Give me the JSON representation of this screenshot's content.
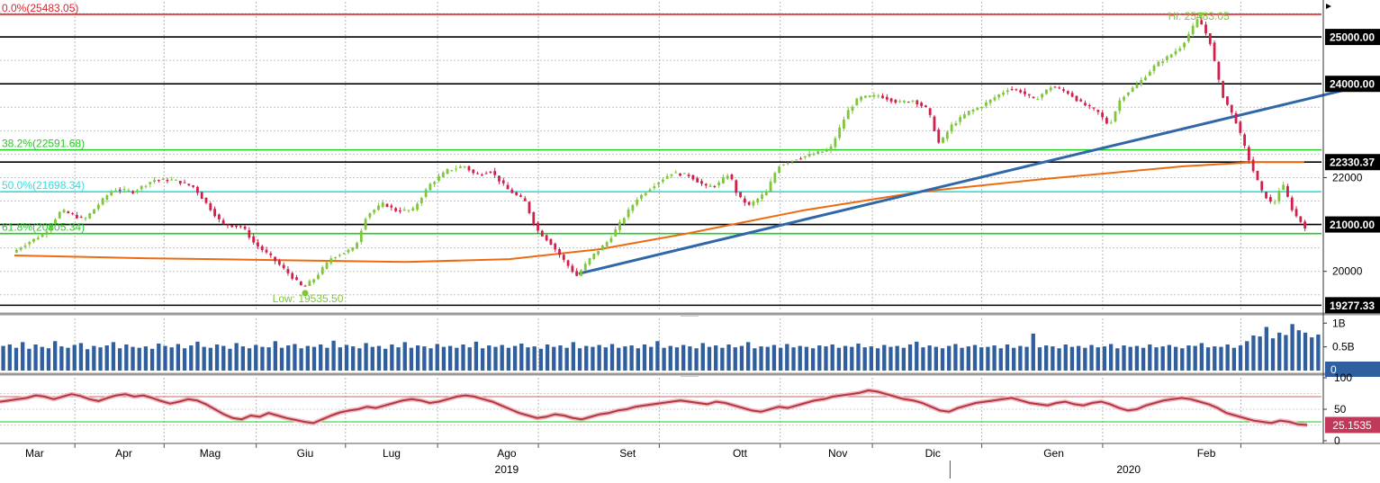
{
  "chart_data": {
    "type": "candlestick",
    "colors": {
      "up_candle": "#7ec63a",
      "down_candle": "#d21f4a",
      "fib_0": "#e8202a",
      "fib_382": "#22cc22",
      "fib_500": "#33dddd",
      "fib_618": "#22cc22",
      "level_line": "#000000",
      "trendline": "#2f67a8",
      "moving_average": "#ee6a10",
      "volume_bar": "#2f5f9f",
      "rsi_line": "#b03a3a",
      "rsi_upper": "#c86a6a",
      "rsi_lower": "#22cc22"
    },
    "price_panel": {
      "ylim": [
        19150,
        25750
      ],
      "ticks": [
        "20000",
        "22000"
      ],
      "fibonacci": [
        {
          "label": "0.0%(25483.05)",
          "value": 25483.05,
          "color_key": "fib_0"
        },
        {
          "label": "38.2%(22591.68)",
          "value": 22591.68,
          "color_key": "fib_382"
        },
        {
          "label": "50.0%(21698.34)",
          "value": 21698.34,
          "color_key": "fib_500"
        },
        {
          "label": "61.8%(20805.34)",
          "value": 20805.34,
          "color_key": "fib_618"
        }
      ],
      "levels": [
        {
          "label": "25000.00",
          "value": 25000
        },
        {
          "label": "24000.00",
          "value": 24000
        },
        {
          "label": "22330.37",
          "value": 22330.37
        },
        {
          "label": "21000.00",
          "value": 21000
        },
        {
          "label": "19277.33",
          "value": 19277.33
        }
      ],
      "hi_label": "Hi: 25483.05",
      "low_label": "Low: 19535.50",
      "price_path": [
        [
          "2019-03-01",
          20400
        ],
        [
          "2019-03-06",
          20600
        ],
        [
          "2019-03-12",
          20800
        ],
        [
          "2019-03-18",
          21300
        ],
        [
          "2019-03-26",
          21100
        ],
        [
          "2019-04-01",
          21500
        ],
        [
          "2019-04-05",
          21750
        ],
        [
          "2019-04-12",
          21700
        ],
        [
          "2019-04-19",
          21950
        ],
        [
          "2019-04-26",
          21950
        ],
        [
          "2019-05-03",
          21800
        ],
        [
          "2019-05-08",
          21400
        ],
        [
          "2019-05-13",
          21000
        ],
        [
          "2019-05-20",
          20950
        ],
        [
          "2019-05-24",
          20600
        ],
        [
          "2019-05-30",
          20300
        ],
        [
          "2019-06-05",
          19950
        ],
        [
          "2019-06-10",
          19650
        ],
        [
          "2019-06-14",
          19850
        ],
        [
          "2019-06-20",
          20300
        ],
        [
          "2019-06-28",
          20500
        ],
        [
          "2019-07-02",
          21200
        ],
        [
          "2019-07-08",
          21450
        ],
        [
          "2019-07-12",
          21300
        ],
        [
          "2019-07-18",
          21300
        ],
        [
          "2019-07-24",
          21850
        ],
        [
          "2019-07-30",
          22150
        ],
        [
          "2019-08-05",
          22250
        ],
        [
          "2019-08-09",
          22050
        ],
        [
          "2019-08-14",
          22150
        ],
        [
          "2019-08-20",
          21750
        ],
        [
          "2019-08-26",
          21500
        ],
        [
          "2019-08-30",
          20900
        ],
        [
          "2019-09-04",
          20600
        ],
        [
          "2019-09-09",
          20200
        ],
        [
          "2019-09-13",
          19900
        ],
        [
          "2019-09-18",
          20300
        ],
        [
          "2019-09-24",
          20650
        ],
        [
          "2019-09-30",
          21200
        ],
        [
          "2019-10-04",
          21550
        ],
        [
          "2019-10-10",
          21850
        ],
        [
          "2019-10-16",
          22100
        ],
        [
          "2019-10-22",
          22050
        ],
        [
          "2019-10-28",
          21800
        ],
        [
          "2019-11-01",
          21850
        ],
        [
          "2019-11-05",
          22100
        ],
        [
          "2019-11-08",
          21600
        ],
        [
          "2019-11-12",
          21400
        ],
        [
          "2019-11-18",
          21700
        ],
        [
          "2019-11-22",
          22250
        ],
        [
          "2019-11-28",
          22400
        ],
        [
          "2019-12-04",
          22500
        ],
        [
          "2019-12-10",
          22600
        ],
        [
          "2019-12-16",
          23400
        ],
        [
          "2019-12-20",
          23700
        ],
        [
          "2019-12-27",
          23750
        ],
        [
          "2020-01-03",
          23600
        ],
        [
          "2020-01-08",
          23650
        ],
        [
          "2020-01-13",
          23450
        ],
        [
          "2020-01-17",
          22700
        ],
        [
          "2020-01-21",
          23100
        ],
        [
          "2020-01-27",
          23400
        ],
        [
          "2020-01-31",
          23500
        ],
        [
          "2020-02-05",
          23700
        ],
        [
          "2020-02-10",
          23900
        ],
        [
          "2020-02-14",
          23850
        ],
        [
          "2020-02-19",
          23650
        ],
        [
          "2020-02-25",
          23950
        ],
        [
          "2020-03-02",
          23800
        ],
        [
          "2020-03-06",
          23600
        ],
        [
          "2020-03-12",
          23400
        ],
        [
          "2020-03-16",
          23100
        ],
        [
          "2020-03-20",
          23700
        ],
        [
          "2020-03-26",
          24000
        ],
        [
          "2020-04-01",
          24400
        ],
        [
          "2020-04-06",
          24600
        ],
        [
          "2020-04-10",
          24800
        ],
        [
          "2020-04-13",
          25100
        ],
        [
          "2020-04-16",
          25400
        ],
        [
          "2020-04-20",
          24900
        ],
        [
          "2020-04-24",
          23800
        ],
        [
          "2020-04-29",
          23200
        ],
        [
          "2020-05-04",
          22300
        ],
        [
          "2020-05-08",
          21700
        ],
        [
          "2020-05-12",
          21400
        ],
        [
          "2020-05-15",
          21900
        ],
        [
          "2020-05-19",
          21250
        ],
        [
          "2020-05-23",
          20950
        ]
      ],
      "trendline": [
        [
          "2019-09-13",
          19950
        ],
        [
          "2020-06-14",
          24000
        ]
      ],
      "moving_average": [
        [
          "2019-03-01",
          20340
        ],
        [
          "2019-04-15",
          20280
        ],
        [
          "2019-06-01",
          20240
        ],
        [
          "2019-07-15",
          20200
        ],
        [
          "2019-08-20",
          20260
        ],
        [
          "2019-09-20",
          20470
        ],
        [
          "2019-10-20",
          20800
        ],
        [
          "2019-11-30",
          21300
        ],
        [
          "2020-01-10",
          21700
        ],
        [
          "2020-02-20",
          21960
        ],
        [
          "2020-04-10",
          22240
        ],
        [
          "2020-05-05",
          22330
        ],
        [
          "2020-05-22",
          22330
        ]
      ]
    },
    "volume_panel": {
      "ylim": [
        0,
        1.1
      ],
      "ticks": [
        "1B",
        "0.5B"
      ],
      "last_label": "0",
      "values": [
        0.52,
        0.55,
        0.48,
        0.6,
        0.46,
        0.55,
        0.5,
        0.47,
        0.62,
        0.51,
        0.48,
        0.54,
        0.58,
        0.45,
        0.52,
        0.49,
        0.53,
        0.6,
        0.47,
        0.55,
        0.5,
        0.48,
        0.51,
        0.46,
        0.57,
        0.52,
        0.49,
        0.56,
        0.47,
        0.53,
        0.61,
        0.5,
        0.48,
        0.55,
        0.52,
        0.46,
        0.58,
        0.51,
        0.47,
        0.54,
        0.5,
        0.49,
        0.62,
        0.48,
        0.53,
        0.56,
        0.47,
        0.52,
        0.5,
        0.55,
        0.48,
        0.63,
        0.49,
        0.54,
        0.51,
        0.47,
        0.58,
        0.5,
        0.52,
        0.46,
        0.55,
        0.49,
        0.6,
        0.48,
        0.53,
        0.51,
        0.47,
        0.56,
        0.5,
        0.52,
        0.48,
        0.55,
        0.49,
        0.61,
        0.47,
        0.53,
        0.5,
        0.54,
        0.48,
        0.52,
        0.57,
        0.49,
        0.51,
        0.46,
        0.55,
        0.5,
        0.53,
        0.48,
        0.6,
        0.47,
        0.52,
        0.5,
        0.54,
        0.49,
        0.56,
        0.48,
        0.51,
        0.53,
        0.47,
        0.55,
        0.5,
        0.62,
        0.48,
        0.52,
        0.49,
        0.54,
        0.51,
        0.47,
        0.58,
        0.5,
        0.53,
        0.48,
        0.55,
        0.49,
        0.52,
        0.6,
        0.47,
        0.51,
        0.5,
        0.54,
        0.48,
        0.56,
        0.49,
        0.52,
        0.5,
        0.47,
        0.53,
        0.51,
        0.55,
        0.48,
        0.52,
        0.5,
        0.57,
        0.49,
        0.51,
        0.47,
        0.54,
        0.5,
        0.52,
        0.48,
        0.55,
        0.61,
        0.49,
        0.53,
        0.5,
        0.47,
        0.52,
        0.56,
        0.48,
        0.51,
        0.54,
        0.49,
        0.5,
        0.53,
        0.47,
        0.55,
        0.48,
        0.52,
        0.5,
        0.78,
        0.49,
        0.53,
        0.51,
        0.47,
        0.55,
        0.5,
        0.52,
        0.48,
        0.54,
        0.49,
        0.51,
        0.56,
        0.47,
        0.53,
        0.5,
        0.52,
        0.48,
        0.55,
        0.49,
        0.51,
        0.54,
        0.5,
        0.47,
        0.53,
        0.52,
        0.58,
        0.49,
        0.51,
        0.5,
        0.55,
        0.48,
        0.53,
        0.62,
        0.74,
        0.72,
        0.92,
        0.68,
        0.8,
        0.75,
        0.98,
        0.85,
        0.8,
        0.7,
        0.76
      ]
    },
    "rsi_panel": {
      "ylim": [
        0,
        100
      ],
      "ticks": [
        "100",
        "50",
        "0"
      ],
      "upper": 70,
      "lower": 30,
      "last_label": "25.1535",
      "values": [
        62,
        64,
        66,
        68,
        72,
        70,
        66,
        70,
        74,
        71,
        66,
        63,
        68,
        72,
        74,
        70,
        72,
        68,
        63,
        59,
        62,
        66,
        64,
        58,
        50,
        42,
        36,
        34,
        40,
        38,
        44,
        40,
        36,
        33,
        30,
        28,
        34,
        40,
        45,
        48,
        50,
        54,
        52,
        56,
        60,
        64,
        66,
        64,
        60,
        62,
        66,
        70,
        72,
        70,
        66,
        62,
        56,
        50,
        44,
        40,
        36,
        38,
        42,
        40,
        36,
        34,
        38,
        42,
        44,
        48,
        50,
        54,
        56,
        58,
        60,
        62,
        64,
        62,
        60,
        58,
        62,
        60,
        56,
        52,
        48,
        46,
        50,
        54,
        52,
        56,
        60,
        64,
        66,
        70,
        72,
        74,
        76,
        80,
        78,
        74,
        70,
        66,
        64,
        60,
        54,
        48,
        46,
        52,
        56,
        60,
        62,
        64,
        66,
        68,
        64,
        60,
        58,
        56,
        60,
        62,
        58,
        56,
        60,
        62,
        58,
        52,
        48,
        50,
        56,
        60,
        64,
        66,
        68,
        66,
        62,
        58,
        52,
        44,
        40,
        36,
        32,
        30,
        28,
        32,
        30,
        26,
        25
      ]
    },
    "x_axis": {
      "months": [
        {
          "label": "Mar",
          "date": "2019-03-08"
        },
        {
          "label": "Apr",
          "date": "2019-04-08"
        },
        {
          "label": "Mag",
          "date": "2019-05-08"
        },
        {
          "label": "Giu",
          "date": "2019-06-10"
        },
        {
          "label": "Lug",
          "date": "2019-07-10"
        },
        {
          "label": "Ago",
          "date": "2019-08-19"
        },
        {
          "label": "Set",
          "date": "2019-09-30"
        },
        {
          "label": "Ott",
          "date": "2019-11-08"
        },
        {
          "label": "Nov",
          "date": "2019-12-12"
        },
        {
          "label": "Dic",
          "date": "2020-01-14"
        },
        {
          "label": "Gen",
          "date": "2020-02-25"
        },
        {
          "label": "Feb",
          "date": "2020-04-18"
        }
      ],
      "years": [
        {
          "label": "2019",
          "date": "2019-08-19"
        },
        {
          "label": "2020",
          "date": "2020-03-22"
        }
      ]
    }
  }
}
